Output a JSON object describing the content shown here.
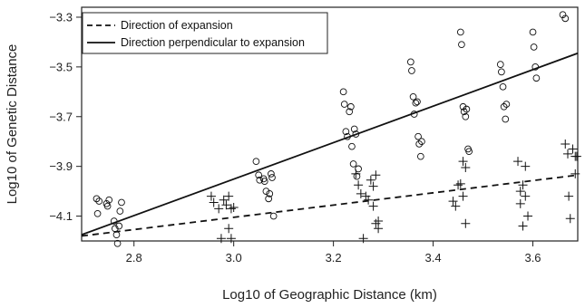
{
  "chart_data": {
    "type": "scatter",
    "title": "",
    "xlabel": "Log10 of Geographic Distance (km)",
    "ylabel": "Log10 of Genetic Distance",
    "xlim": [
      2.695,
      3.69
    ],
    "ylim": [
      -4.2,
      -3.26
    ],
    "xticks": [
      2.8,
      3.0,
      3.2,
      3.4,
      3.6
    ],
    "yticks": [
      -4.1,
      -3.9,
      -3.7,
      -3.5,
      -3.3
    ],
    "grid": false,
    "legend_position": "top-left",
    "colors": {
      "ink": "#111111",
      "frame": "#222222"
    },
    "series": [
      {
        "name": "Direction of expansion",
        "marker": "plus",
        "line_style": "dashed",
        "fit_line": [
          [
            2.695,
            -4.18
          ],
          [
            3.69,
            -3.935
          ]
        ],
        "points": [
          [
            2.955,
            -4.02
          ],
          [
            2.96,
            -4.045
          ],
          [
            2.97,
            -4.07
          ],
          [
            2.975,
            -4.19
          ],
          [
            2.98,
            -4.035
          ],
          [
            2.985,
            -4.055
          ],
          [
            2.99,
            -4.02
          ],
          [
            2.99,
            -4.15
          ],
          [
            2.995,
            -4.07
          ],
          [
            3.0,
            -4.065
          ],
          [
            2.995,
            -4.19
          ],
          [
            3.245,
            -3.93
          ],
          [
            3.25,
            -3.975
          ],
          [
            3.255,
            -4.01
          ],
          [
            3.26,
            -4.19
          ],
          [
            3.265,
            -4.02
          ],
          [
            3.27,
            -4.035
          ],
          [
            3.275,
            -3.955
          ],
          [
            3.28,
            -3.98
          ],
          [
            3.28,
            -4.06
          ],
          [
            3.285,
            -4.13
          ],
          [
            3.285,
            -3.935
          ],
          [
            3.29,
            -4.15
          ],
          [
            3.29,
            -4.12
          ],
          [
            3.44,
            -4.04
          ],
          [
            3.445,
            -4.06
          ],
          [
            3.45,
            -3.975
          ],
          [
            3.455,
            -3.97
          ],
          [
            3.46,
            -3.88
          ],
          [
            3.46,
            -4.02
          ],
          [
            3.465,
            -3.905
          ],
          [
            3.465,
            -4.13
          ],
          [
            3.57,
            -3.88
          ],
          [
            3.575,
            -4.0
          ],
          [
            3.575,
            -4.05
          ],
          [
            3.58,
            -3.975
          ],
          [
            3.58,
            -4.14
          ],
          [
            3.585,
            -3.9
          ],
          [
            3.59,
            -4.1
          ],
          [
            3.585,
            -4.02
          ],
          [
            3.665,
            -3.81
          ],
          [
            3.67,
            -3.85
          ],
          [
            3.672,
            -4.02
          ],
          [
            3.675,
            -4.11
          ],
          [
            3.68,
            -3.83
          ],
          [
            3.685,
            -3.86
          ],
          [
            3.685,
            -3.93
          ],
          [
            3.688,
            -3.86
          ]
        ]
      },
      {
        "name": "Direction perpendicular to expansion",
        "marker": "circle",
        "line_style": "solid",
        "fit_line": [
          [
            2.695,
            -4.175
          ],
          [
            3.69,
            -3.445
          ]
        ],
        "points": [
          [
            2.725,
            -4.03
          ],
          [
            2.727,
            -4.09
          ],
          [
            2.73,
            -4.04
          ],
          [
            2.745,
            -4.05
          ],
          [
            2.747,
            -4.06
          ],
          [
            2.75,
            -4.035
          ],
          [
            2.76,
            -4.12
          ],
          [
            2.762,
            -4.15
          ],
          [
            2.765,
            -4.175
          ],
          [
            2.767,
            -4.21
          ],
          [
            2.77,
            -4.14
          ],
          [
            2.772,
            -4.08
          ],
          [
            2.775,
            -4.045
          ],
          [
            3.045,
            -3.88
          ],
          [
            3.05,
            -3.935
          ],
          [
            3.052,
            -3.955
          ],
          [
            3.06,
            -3.95
          ],
          [
            3.062,
            -3.96
          ],
          [
            3.065,
            -4.0
          ],
          [
            3.07,
            -4.03
          ],
          [
            3.072,
            -4.01
          ],
          [
            3.075,
            -3.93
          ],
          [
            3.077,
            -3.945
          ],
          [
            3.08,
            -4.1
          ],
          [
            3.22,
            -3.6
          ],
          [
            3.222,
            -3.65
          ],
          [
            3.225,
            -3.76
          ],
          [
            3.228,
            -3.78
          ],
          [
            3.232,
            -3.68
          ],
          [
            3.235,
            -3.66
          ],
          [
            3.237,
            -3.82
          ],
          [
            3.24,
            -3.89
          ],
          [
            3.242,
            -3.75
          ],
          [
            3.245,
            -3.77
          ],
          [
            3.247,
            -3.94
          ],
          [
            3.25,
            -3.91
          ],
          [
            3.355,
            -3.48
          ],
          [
            3.357,
            -3.515
          ],
          [
            3.36,
            -3.62
          ],
          [
            3.362,
            -3.69
          ],
          [
            3.365,
            -3.645
          ],
          [
            3.368,
            -3.64
          ],
          [
            3.37,
            -3.78
          ],
          [
            3.372,
            -3.81
          ],
          [
            3.375,
            -3.86
          ],
          [
            3.377,
            -3.8
          ],
          [
            3.455,
            -3.36
          ],
          [
            3.457,
            -3.41
          ],
          [
            3.46,
            -3.66
          ],
          [
            3.462,
            -3.68
          ],
          [
            3.465,
            -3.7
          ],
          [
            3.467,
            -3.67
          ],
          [
            3.47,
            -3.83
          ],
          [
            3.472,
            -3.84
          ],
          [
            3.535,
            -3.49
          ],
          [
            3.537,
            -3.52
          ],
          [
            3.54,
            -3.58
          ],
          [
            3.542,
            -3.66
          ],
          [
            3.545,
            -3.71
          ],
          [
            3.547,
            -3.65
          ],
          [
            3.6,
            -3.36
          ],
          [
            3.602,
            -3.42
          ],
          [
            3.605,
            -3.5
          ],
          [
            3.607,
            -3.545
          ],
          [
            3.66,
            -3.29
          ],
          [
            3.665,
            -3.305
          ]
        ]
      }
    ]
  }
}
